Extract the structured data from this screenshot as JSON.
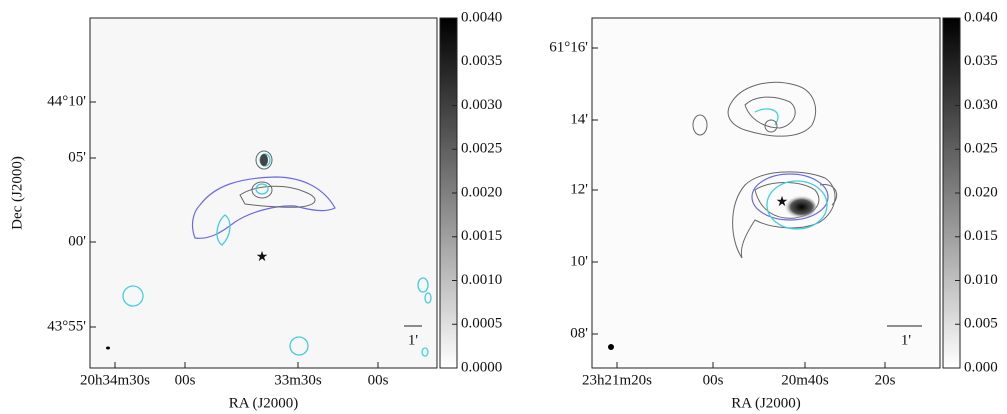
{
  "chart_data": [
    {
      "type": "image",
      "xlabel": "RA (J2000)",
      "ylabel": "Dec (J2000)",
      "xticks": [
        "20h34m30s",
        "00s",
        "33m30s",
        "00s"
      ],
      "yticks": [
        "44°10'",
        "05'",
        "00'",
        "43°55'"
      ],
      "scale_bar": "1'",
      "cmap": "gray_r",
      "clim": [
        0,
        0.004
      ],
      "cticks": [
        {
          "value": 0,
          "label": "0.0000"
        },
        0.0005,
        {
          "value": 0.001,
          "label": "0.0010"
        },
        0.0015,
        {
          "value": 0.002,
          "label": "0.0020"
        },
        0.0025,
        {
          "value": 0.003,
          "label": "0.0030"
        },
        0.0035,
        {
          "value": 0.004,
          "label": "0.0040"
        }
      ]
    },
    {
      "type": "image",
      "xlabel": "RA (J2000)",
      "xticks": [
        "23h21m20s",
        "00s",
        "20m40s",
        "20s"
      ],
      "yticks": [
        "61°16'",
        "14'",
        "12'",
        "10'",
        "08'"
      ],
      "scale_bar": "1'",
      "cmap": "gray_r",
      "clim": [
        0,
        0.04
      ],
      "cticks": [
        {
          "value": 0,
          "label": "0.000"
        },
        0.005,
        {
          "value": 0.01,
          "label": "0.010"
        },
        0.015,
        {
          "value": 0.02,
          "label": "0.020"
        },
        0.025,
        {
          "value": 0.03,
          "label": "0.030"
        },
        0.035,
        {
          "value": 0.04,
          "label": "0.040"
        }
      ]
    }
  ]
}
